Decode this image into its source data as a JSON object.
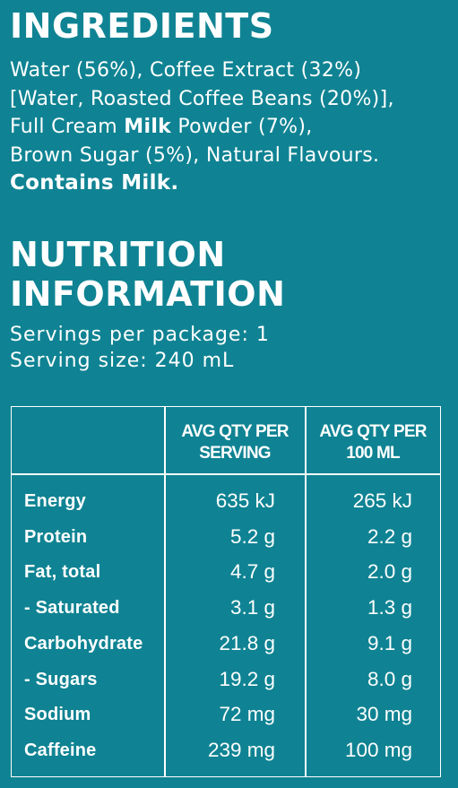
{
  "ingredients": {
    "title": "INGREDIENTS",
    "line1": "Water (56%), Coffee Extract (32%)",
    "line2": "[Water, Roasted Coffee Beans (20%)],",
    "line3_pre": "Full Cream ",
    "line3_bold": "Milk",
    "line3_post": " Powder (7%),",
    "line4": "Brown Sugar (5%), Natural Flavours.",
    "contains": "Contains Milk."
  },
  "nutrition": {
    "title_line1": "NUTRITION",
    "title_line2": "INFORMATION",
    "servings_per_package": "Servings per package: 1",
    "serving_size": "Serving size: 240 mL",
    "table": {
      "col1_line1": "AVG QTY PER",
      "col1_line2": "SERVING",
      "col2_line1": "AVG QTY PER",
      "col2_line2": "100 ML",
      "rows": [
        {
          "label": "Energy",
          "per_serving": "635 kJ",
          "per_100ml": "265 kJ"
        },
        {
          "label": "Protein",
          "per_serving": "5.2 g",
          "per_100ml": "2.2 g"
        },
        {
          "label": "Fat, total",
          "per_serving": "4.7 g",
          "per_100ml": "2.0 g"
        },
        {
          "label": "- Saturated",
          "per_serving": "3.1 g",
          "per_100ml": "1.3 g"
        },
        {
          "label": "Carbohydrate",
          "per_serving": "21.8 g",
          "per_100ml": "9.1 g"
        },
        {
          "label": "- Sugars",
          "per_serving": "19.2 g",
          "per_100ml": "8.0 g"
        },
        {
          "label": "Sodium",
          "per_serving": "72 mg",
          "per_100ml": "30 mg"
        },
        {
          "label": "Caffeine",
          "per_serving": "239 mg",
          "per_100ml": "100 mg"
        }
      ]
    }
  },
  "colors": {
    "background": "#0f8393",
    "text": "#ffffff"
  }
}
